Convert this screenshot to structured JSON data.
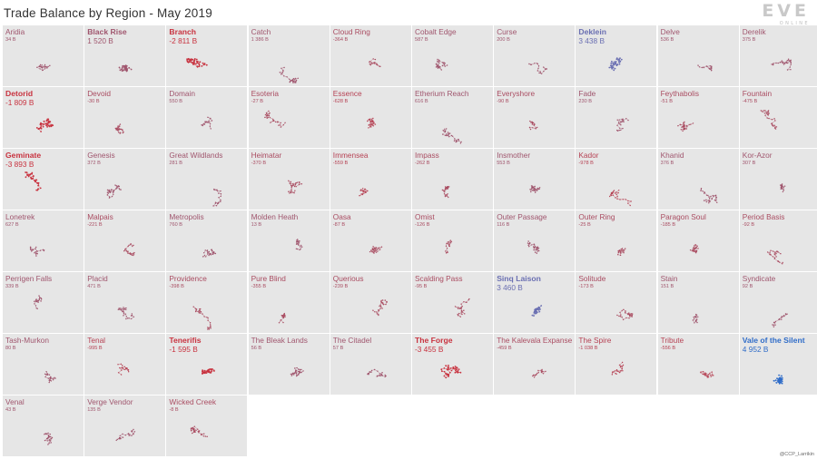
{
  "title": "Trade Balance by Region - May 2019",
  "logo": {
    "text": "EVE",
    "subtext": "ONLINE"
  },
  "credit": "@CCP_Larrikin",
  "colors": {
    "positive_strong": "#2f6cc8",
    "positive": "#6a6fb2",
    "negative": "#c8323f",
    "neutral": "#a0566e",
    "tile_bg": "#e6e6e6"
  },
  "chart_data": {
    "type": "table",
    "title": "Trade Balance by Region - May 2019",
    "unit": "B ISK",
    "regions": [
      {
        "name": "Aridia",
        "label": "34 B",
        "value": 34
      },
      {
        "name": "Black Rise",
        "label": "1 520 B",
        "value": 1520
      },
      {
        "name": "Branch",
        "label": "-2 811 B",
        "value": -2811
      },
      {
        "name": "Catch",
        "label": "1 386 B",
        "value": 1386
      },
      {
        "name": "Cloud Ring",
        "label": "-364 B",
        "value": -364
      },
      {
        "name": "Cobalt Edge",
        "label": "587 B",
        "value": 587
      },
      {
        "name": "Curse",
        "label": "200 B",
        "value": 200
      },
      {
        "name": "Deklein",
        "label": "3 438 B",
        "value": 3438
      },
      {
        "name": "Delve",
        "label": "536 B",
        "value": 536
      },
      {
        "name": "Derelik",
        "label": "375 B",
        "value": 375
      },
      {
        "name": "Detorid",
        "label": "-1 809 B",
        "value": -1809
      },
      {
        "name": "Devoid",
        "label": "-30 B",
        "value": -30
      },
      {
        "name": "Domain",
        "label": "550 B",
        "value": 550
      },
      {
        "name": "Esoteria",
        "label": "-27 B",
        "value": -27
      },
      {
        "name": "Essence",
        "label": "-628 B",
        "value": -628
      },
      {
        "name": "Etherium Reach",
        "label": "616 B",
        "value": 616
      },
      {
        "name": "Everyshore",
        "label": "-90 B",
        "value": -90
      },
      {
        "name": "Fade",
        "label": "230 B",
        "value": 230
      },
      {
        "name": "Feythabolis",
        "label": "-51 B",
        "value": -51
      },
      {
        "name": "Fountain",
        "label": "-475 B",
        "value": -475
      },
      {
        "name": "Geminate",
        "label": "-3 893 B",
        "value": -3893
      },
      {
        "name": "Genesis",
        "label": "372 B",
        "value": 372
      },
      {
        "name": "Great Wildlands",
        "label": "281 B",
        "value": 281
      },
      {
        "name": "Heimatar",
        "label": "-370 B",
        "value": -370
      },
      {
        "name": "Immensea",
        "label": "-559 B",
        "value": -559
      },
      {
        "name": "Impass",
        "label": "-262 B",
        "value": -262
      },
      {
        "name": "Insmother",
        "label": "553 B",
        "value": 553
      },
      {
        "name": "Kador",
        "label": "-978 B",
        "value": -978
      },
      {
        "name": "Khanid",
        "label": "376 B",
        "value": 376
      },
      {
        "name": "Kor-Azor",
        "label": "307 B",
        "value": 307
      },
      {
        "name": "Lonetrek",
        "label": "627 B",
        "value": 627
      },
      {
        "name": "Malpais",
        "label": "-221 B",
        "value": -221
      },
      {
        "name": "Metropolis",
        "label": "760 B",
        "value": 760
      },
      {
        "name": "Molden Heath",
        "label": "13 B",
        "value": 13
      },
      {
        "name": "Oasa",
        "label": "-87 B",
        "value": -87
      },
      {
        "name": "Omist",
        "label": "-126 B",
        "value": -126
      },
      {
        "name": "Outer Passage",
        "label": "116 B",
        "value": 116
      },
      {
        "name": "Outer Ring",
        "label": "-25 B",
        "value": -25
      },
      {
        "name": "Paragon Soul",
        "label": "-185 B",
        "value": -185
      },
      {
        "name": "Period Basis",
        "label": "-92 B",
        "value": -92
      },
      {
        "name": "Perrigen Falls",
        "label": "339 B",
        "value": 339
      },
      {
        "name": "Placid",
        "label": "471 B",
        "value": 471
      },
      {
        "name": "Providence",
        "label": "-398 B",
        "value": -398
      },
      {
        "name": "Pure Blind",
        "label": "-355 B",
        "value": -355
      },
      {
        "name": "Querious",
        "label": "-239 B",
        "value": -239
      },
      {
        "name": "Scalding Pass",
        "label": "-95 B",
        "value": -95
      },
      {
        "name": "Sinq Laison",
        "label": "3 460 B",
        "value": 3460
      },
      {
        "name": "Solitude",
        "label": "-173 B",
        "value": -173
      },
      {
        "name": "Stain",
        "label": "151 B",
        "value": 151
      },
      {
        "name": "Syndicate",
        "label": "92 B",
        "value": 92
      },
      {
        "name": "Tash-Murkon",
        "label": "80 B",
        "value": 80
      },
      {
        "name": "Tenal",
        "label": "-995 B",
        "value": -995
      },
      {
        "name": "Tenerifis",
        "label": "-1 595 B",
        "value": -1595
      },
      {
        "name": "The Bleak Lands",
        "label": "56 B",
        "value": 56
      },
      {
        "name": "The Citadel",
        "label": "57 B",
        "value": 57
      },
      {
        "name": "The Forge",
        "label": "-3 455 B",
        "value": -3455
      },
      {
        "name": "The Kalevala Expanse",
        "label": "-459 B",
        "value": -459
      },
      {
        "name": "The Spire",
        "label": "-1 038 B",
        "value": -1038
      },
      {
        "name": "Tribute",
        "label": "-556 B",
        "value": -556
      },
      {
        "name": "Vale of the Silent",
        "label": "4 952 B",
        "value": 4952
      },
      {
        "name": "Venal",
        "label": "43 B",
        "value": 43
      },
      {
        "name": "Verge Vendor",
        "label": "135 B",
        "value": 135
      },
      {
        "name": "Wicked Creek",
        "label": "-8 B",
        "value": -8
      }
    ]
  }
}
